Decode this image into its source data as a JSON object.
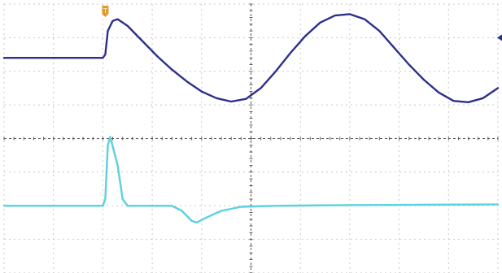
{
  "chart_data": {
    "type": "line",
    "title": "",
    "xlabel": "",
    "ylabel": "",
    "grid": true,
    "grid_divisions": {
      "x": 10,
      "y": 8
    },
    "xlim": [
      0,
      10
    ],
    "ylim": [
      -4,
      4
    ],
    "trigger_marker": {
      "label": "T",
      "x": 2.05
    },
    "series": [
      {
        "color": "#2e2f8c",
        "points": [
          [
            0,
            2.4
          ],
          [
            1.0,
            2.4
          ],
          [
            2.0,
            2.4
          ],
          [
            2.05,
            2.5
          ],
          [
            2.1,
            3.2
          ],
          [
            2.2,
            3.5
          ],
          [
            2.3,
            3.55
          ],
          [
            2.5,
            3.35
          ],
          [
            2.8,
            2.9
          ],
          [
            3.1,
            2.45
          ],
          [
            3.4,
            2.05
          ],
          [
            3.7,
            1.7
          ],
          [
            4.0,
            1.4
          ],
          [
            4.3,
            1.2
          ],
          [
            4.6,
            1.1
          ],
          [
            4.9,
            1.18
          ],
          [
            5.2,
            1.5
          ],
          [
            5.5,
            2.0
          ],
          [
            5.8,
            2.55
          ],
          [
            6.1,
            3.05
          ],
          [
            6.4,
            3.45
          ],
          [
            6.7,
            3.66
          ],
          [
            7.0,
            3.7
          ],
          [
            7.3,
            3.55
          ],
          [
            7.6,
            3.2
          ],
          [
            7.9,
            2.7
          ],
          [
            8.2,
            2.2
          ],
          [
            8.5,
            1.75
          ],
          [
            8.8,
            1.37
          ],
          [
            9.1,
            1.12
          ],
          [
            9.4,
            1.08
          ],
          [
            9.7,
            1.2
          ],
          [
            10.0,
            1.5
          ]
        ]
      },
      {
        "color": "#5ad1de",
        "points": [
          [
            0,
            -2.0
          ],
          [
            1.0,
            -2.0
          ],
          [
            2.0,
            -2.0
          ],
          [
            2.05,
            -1.8
          ],
          [
            2.1,
            -0.2
          ],
          [
            2.15,
            0.05
          ],
          [
            2.3,
            -0.8
          ],
          [
            2.4,
            -1.8
          ],
          [
            2.5,
            -2.0
          ],
          [
            3.0,
            -2.0
          ],
          [
            3.4,
            -2.0
          ],
          [
            3.6,
            -2.15
          ],
          [
            3.8,
            -2.45
          ],
          [
            3.9,
            -2.5
          ],
          [
            4.1,
            -2.35
          ],
          [
            4.4,
            -2.15
          ],
          [
            4.8,
            -2.03
          ],
          [
            5.5,
            -2.0
          ],
          [
            7.0,
            -1.98
          ],
          [
            8.5,
            -1.97
          ],
          [
            10.0,
            -1.96
          ]
        ]
      }
    ],
    "channel_marker_right": {
      "series": 0,
      "y": 3.0
    }
  },
  "colors": {
    "grid": "#c8c8c8",
    "axis": "#5a5a5a",
    "marker": "#e09a2a"
  }
}
